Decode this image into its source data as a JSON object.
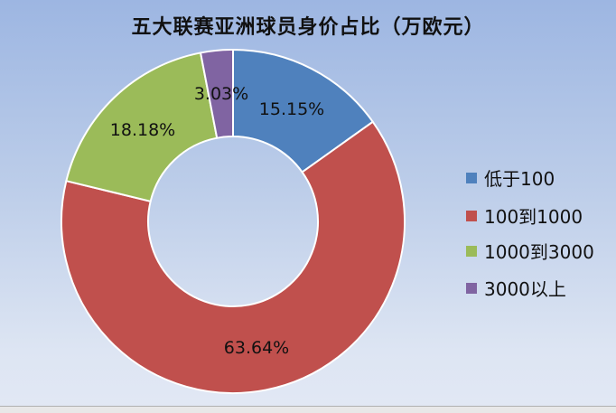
{
  "chart_data": {
    "type": "pie",
    "donut": true,
    "title": "五大联赛亚洲球员身价占比（万欧元）",
    "categories": [
      "低于100",
      "100到1000",
      "1000到3000",
      "3000以上"
    ],
    "values": [
      15.15,
      63.64,
      18.18,
      3.03
    ],
    "data_labels": [
      "15.15%",
      "63.64%",
      "18.18%",
      "3.03%"
    ],
    "colors": [
      "#4f81bd",
      "#c0504d",
      "#9bbb59",
      "#8064a2"
    ],
    "legend_position": "right"
  }
}
